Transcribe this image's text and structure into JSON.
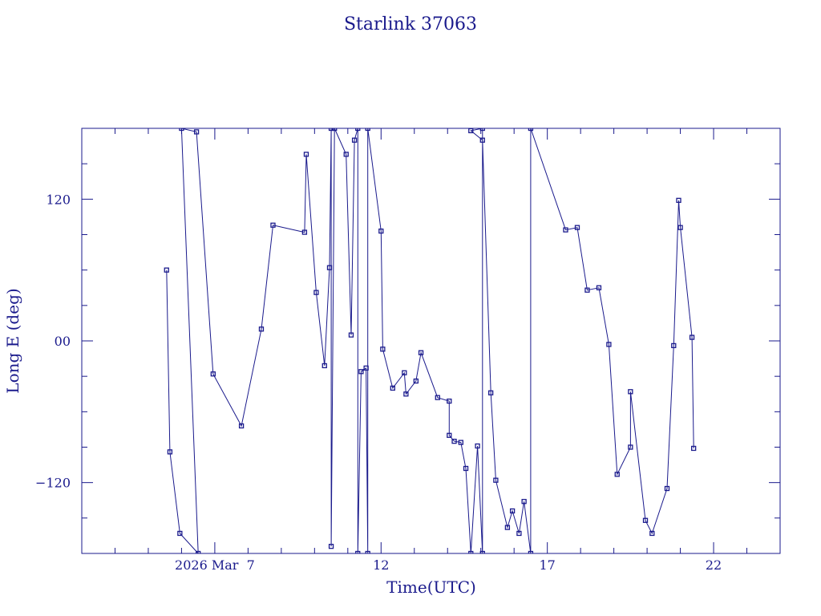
{
  "chart_data": {
    "type": "line",
    "title": "Starlink 37063",
    "xlabel": "Time(UTC)",
    "ylabel": "Long E (deg)",
    "color": "#1a1a8c",
    "x_unit": "day of March 2026",
    "xlim": [
      3.0,
      24.0
    ],
    "ylim": [
      -180,
      180
    ],
    "x_ticks": [
      {
        "value": 7,
        "label": "2026 Mar  7"
      },
      {
        "value": 12,
        "label": "12"
      },
      {
        "value": 17,
        "label": "17"
      },
      {
        "value": 22,
        "label": "22"
      }
    ],
    "y_ticks": [
      {
        "value": 120,
        "label": "120"
      },
      {
        "value": 0,
        "label": "00"
      },
      {
        "value": -120,
        "label": "−120"
      }
    ],
    "series": [
      {
        "points": [
          [
            5.55,
            60
          ],
          [
            5.65,
            -94
          ],
          [
            5.95,
            -163
          ],
          [
            6.5,
            -180
          ],
          [
            6.0,
            180
          ],
          [
            6.45,
            177
          ],
          [
            6.95,
            -28
          ],
          [
            7.8,
            -72
          ],
          [
            8.4,
            10
          ],
          [
            8.75,
            98
          ],
          [
            9.7,
            92
          ],
          [
            9.75,
            158
          ],
          [
            10.05,
            41
          ],
          [
            10.3,
            -21
          ],
          [
            10.45,
            62
          ],
          [
            10.5,
            180
          ],
          [
            10.5,
            -174
          ],
          [
            10.6,
            180
          ],
          [
            10.95,
            158
          ],
          [
            11.1,
            5
          ],
          [
            11.2,
            170
          ],
          [
            11.3,
            180
          ],
          [
            11.3,
            -180
          ],
          [
            11.4,
            -26
          ],
          [
            11.55,
            -23
          ],
          [
            11.6,
            -180
          ],
          [
            11.6,
            180
          ],
          [
            12.0,
            93
          ],
          [
            12.05,
            -7
          ],
          [
            12.35,
            -40
          ],
          [
            12.7,
            -27
          ],
          [
            12.75,
            -45
          ],
          [
            13.05,
            -34
          ],
          [
            13.2,
            -10
          ],
          [
            13.7,
            -48
          ],
          [
            14.05,
            -51
          ],
          [
            14.05,
            -80
          ],
          [
            14.2,
            -85
          ],
          [
            14.4,
            -86
          ],
          [
            14.55,
            -108
          ],
          [
            14.7,
            -180
          ],
          [
            14.9,
            -89
          ],
          [
            15.05,
            -180
          ],
          [
            15.05,
            180
          ],
          [
            14.7,
            178
          ],
          [
            15.05,
            170
          ],
          [
            15.3,
            -44
          ],
          [
            15.45,
            -118
          ],
          [
            15.8,
            -158
          ],
          [
            15.95,
            -144
          ],
          [
            16.15,
            -163
          ],
          [
            16.3,
            -136
          ],
          [
            16.5,
            -180
          ],
          [
            16.5,
            180
          ],
          [
            17.55,
            94
          ],
          [
            17.9,
            96
          ],
          [
            18.2,
            43
          ],
          [
            18.55,
            45
          ],
          [
            18.85,
            -3
          ],
          [
            19.1,
            -113
          ],
          [
            19.5,
            -90
          ],
          [
            19.5,
            -43
          ],
          [
            19.95,
            -152
          ],
          [
            20.15,
            -163
          ],
          [
            20.6,
            -125
          ],
          [
            20.8,
            -4
          ],
          [
            20.95,
            119
          ],
          [
            21.0,
            96
          ],
          [
            21.35,
            3
          ],
          [
            21.4,
            -91
          ]
        ]
      }
    ]
  }
}
